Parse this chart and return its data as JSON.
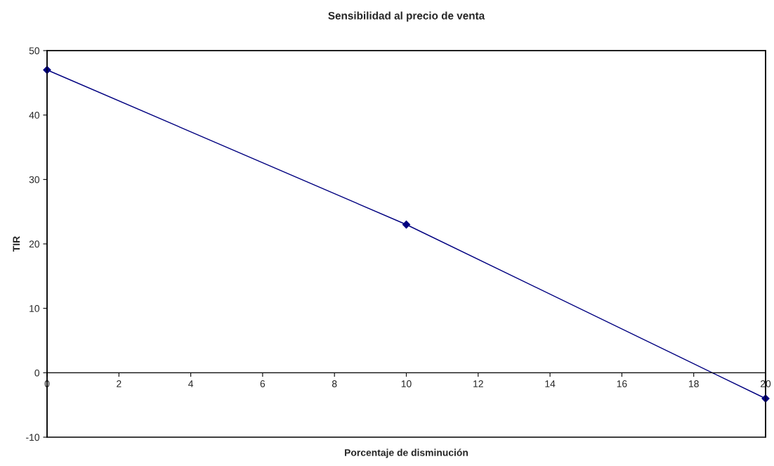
{
  "chart_data": {
    "type": "line",
    "title": "Sensibilidad al precio de venta",
    "xlabel": "Porcentaje de disminución",
    "ylabel": "TIR",
    "x": [
      0,
      10,
      20
    ],
    "series": [
      {
        "color": "#000080",
        "values": [
          47,
          23,
          -4
        ]
      }
    ],
    "xlim": [
      0,
      20
    ],
    "xticks": [
      0,
      2,
      4,
      6,
      8,
      10,
      12,
      14,
      16,
      18,
      20
    ],
    "ylim": [
      -10,
      50
    ],
    "yticks": [
      -10,
      0,
      10,
      20,
      30,
      40,
      50
    ],
    "marker": "diamond",
    "line_style": "solid",
    "grid": false,
    "legend": false
  }
}
